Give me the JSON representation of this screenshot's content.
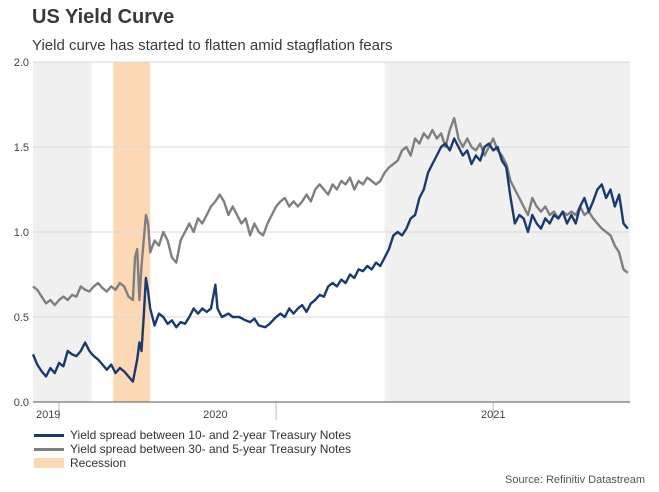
{
  "title": "US Yield Curve",
  "subtitle": "Yield curve has started to flatten amid stagflation fears",
  "source": "Source: Refinitiv Datastream",
  "chart_data": {
    "type": "line",
    "ylim": [
      0.0,
      2.0
    ],
    "yticks": [
      "0.0",
      "0.5",
      "1.0",
      "1.5",
      "2.0"
    ],
    "xlim": [
      2018.88,
      2021.63
    ],
    "x_year_labels": [
      {
        "label": "2019",
        "at": 2019.0
      },
      {
        "label": "2020",
        "at": 2020.0
      },
      {
        "label": "2021",
        "at": 2021.0
      }
    ],
    "year_dividers": [
      2019.0,
      2020.0,
      2021.0
    ],
    "shaded_periods": [
      {
        "from": 2018.88,
        "to": 2019.15,
        "color": "#f0f0f0"
      },
      {
        "from": 2020.5,
        "to": 2021.63,
        "color": "#f0f0f0"
      }
    ],
    "recession": {
      "from": 2019.25,
      "to": 2019.42,
      "color": "#fdd8b5"
    },
    "legend_recession": "Recession",
    "series": [
      {
        "name": "Yield spread between 10- and 2-year Treasury Notes",
        "color": "#1a3a6e",
        "points": [
          [
            2018.88,
            0.28
          ],
          [
            2018.9,
            0.22
          ],
          [
            2018.92,
            0.18
          ],
          [
            2018.94,
            0.15
          ],
          [
            2018.96,
            0.2
          ],
          [
            2018.98,
            0.17
          ],
          [
            2019.0,
            0.23
          ],
          [
            2019.02,
            0.21
          ],
          [
            2019.04,
            0.3
          ],
          [
            2019.06,
            0.28
          ],
          [
            2019.08,
            0.27
          ],
          [
            2019.1,
            0.3
          ],
          [
            2019.12,
            0.35
          ],
          [
            2019.14,
            0.3
          ],
          [
            2019.16,
            0.27
          ],
          [
            2019.18,
            0.25
          ],
          [
            2019.2,
            0.22
          ],
          [
            2019.22,
            0.19
          ],
          [
            2019.24,
            0.22
          ],
          [
            2019.26,
            0.17
          ],
          [
            2019.28,
            0.2
          ],
          [
            2019.3,
            0.18
          ],
          [
            2019.32,
            0.15
          ],
          [
            2019.34,
            0.12
          ],
          [
            2019.36,
            0.25
          ],
          [
            2019.37,
            0.35
          ],
          [
            2019.38,
            0.3
          ],
          [
            2019.39,
            0.5
          ],
          [
            2019.4,
            0.73
          ],
          [
            2019.41,
            0.65
          ],
          [
            2019.42,
            0.55
          ],
          [
            2019.44,
            0.45
          ],
          [
            2019.46,
            0.52
          ],
          [
            2019.48,
            0.5
          ],
          [
            2019.5,
            0.46
          ],
          [
            2019.52,
            0.48
          ],
          [
            2019.54,
            0.44
          ],
          [
            2019.56,
            0.47
          ],
          [
            2019.58,
            0.46
          ],
          [
            2019.6,
            0.5
          ],
          [
            2019.62,
            0.55
          ],
          [
            2019.64,
            0.52
          ],
          [
            2019.66,
            0.55
          ],
          [
            2019.68,
            0.53
          ],
          [
            2019.7,
            0.55
          ],
          [
            2019.71,
            0.62
          ],
          [
            2019.72,
            0.69
          ],
          [
            2019.73,
            0.55
          ],
          [
            2019.75,
            0.5
          ],
          [
            2019.78,
            0.52
          ],
          [
            2019.8,
            0.5
          ],
          [
            2019.83,
            0.5
          ],
          [
            2019.86,
            0.48
          ],
          [
            2019.88,
            0.47
          ],
          [
            2019.9,
            0.49
          ],
          [
            2019.92,
            0.45
          ],
          [
            2019.95,
            0.44
          ],
          [
            2019.97,
            0.46
          ],
          [
            2020.0,
            0.5
          ],
          [
            2020.02,
            0.52
          ],
          [
            2020.04,
            0.5
          ],
          [
            2020.06,
            0.55
          ],
          [
            2020.08,
            0.52
          ],
          [
            2020.1,
            0.55
          ],
          [
            2020.12,
            0.57
          ],
          [
            2020.14,
            0.53
          ],
          [
            2020.16,
            0.58
          ],
          [
            2020.18,
            0.6
          ],
          [
            2020.2,
            0.63
          ],
          [
            2020.22,
            0.62
          ],
          [
            2020.24,
            0.68
          ],
          [
            2020.26,
            0.7
          ],
          [
            2020.28,
            0.68
          ],
          [
            2020.3,
            0.72
          ],
          [
            2020.32,
            0.7
          ],
          [
            2020.34,
            0.75
          ],
          [
            2020.36,
            0.73
          ],
          [
            2020.38,
            0.78
          ],
          [
            2020.4,
            0.77
          ],
          [
            2020.42,
            0.8
          ],
          [
            2020.44,
            0.78
          ],
          [
            2020.46,
            0.82
          ],
          [
            2020.48,
            0.8
          ],
          [
            2020.5,
            0.85
          ],
          [
            2020.52,
            0.9
          ],
          [
            2020.54,
            0.98
          ],
          [
            2020.56,
            1.0
          ],
          [
            2020.58,
            0.98
          ],
          [
            2020.6,
            1.02
          ],
          [
            2020.62,
            1.08
          ],
          [
            2020.64,
            1.1
          ],
          [
            2020.66,
            1.2
          ],
          [
            2020.68,
            1.25
          ],
          [
            2020.7,
            1.35
          ],
          [
            2020.72,
            1.4
          ],
          [
            2020.74,
            1.45
          ],
          [
            2020.76,
            1.5
          ],
          [
            2020.78,
            1.52
          ],
          [
            2020.8,
            1.48
          ],
          [
            2020.82,
            1.55
          ],
          [
            2020.84,
            1.5
          ],
          [
            2020.86,
            1.45
          ],
          [
            2020.88,
            1.48
          ],
          [
            2020.9,
            1.4
          ],
          [
            2020.92,
            1.45
          ],
          [
            2020.94,
            1.42
          ],
          [
            2020.96,
            1.5
          ],
          [
            2020.98,
            1.52
          ],
          [
            2021.0,
            1.48
          ],
          [
            2021.02,
            1.5
          ],
          [
            2021.04,
            1.42
          ],
          [
            2021.06,
            1.38
          ],
          [
            2021.08,
            1.2
          ],
          [
            2021.1,
            1.05
          ],
          [
            2021.12,
            1.1
          ],
          [
            2021.14,
            1.08
          ],
          [
            2021.16,
            1.0
          ],
          [
            2021.18,
            1.1
          ],
          [
            2021.2,
            1.05
          ],
          [
            2021.22,
            1.02
          ],
          [
            2021.24,
            1.08
          ],
          [
            2021.26,
            1.05
          ],
          [
            2021.28,
            1.1
          ],
          [
            2021.3,
            1.08
          ],
          [
            2021.32,
            1.12
          ],
          [
            2021.34,
            1.05
          ],
          [
            2021.36,
            1.1
          ],
          [
            2021.38,
            1.05
          ],
          [
            2021.4,
            1.15
          ],
          [
            2021.42,
            1.2
          ],
          [
            2021.44,
            1.12
          ],
          [
            2021.46,
            1.18
          ],
          [
            2021.48,
            1.25
          ],
          [
            2021.5,
            1.28
          ],
          [
            2021.52,
            1.2
          ],
          [
            2021.54,
            1.25
          ],
          [
            2021.56,
            1.15
          ],
          [
            2021.58,
            1.22
          ],
          [
            2021.6,
            1.05
          ],
          [
            2021.62,
            1.02
          ]
        ]
      },
      {
        "name": "Yield spread between 30- and 5-year Treasury Notes",
        "color": "#7f7f7f",
        "points": [
          [
            2018.88,
            0.68
          ],
          [
            2018.9,
            0.66
          ],
          [
            2018.92,
            0.62
          ],
          [
            2018.94,
            0.58
          ],
          [
            2018.96,
            0.6
          ],
          [
            2018.98,
            0.57
          ],
          [
            2019.0,
            0.6
          ],
          [
            2019.02,
            0.62
          ],
          [
            2019.04,
            0.6
          ],
          [
            2019.06,
            0.63
          ],
          [
            2019.08,
            0.62
          ],
          [
            2019.1,
            0.68
          ],
          [
            2019.12,
            0.66
          ],
          [
            2019.14,
            0.65
          ],
          [
            2019.16,
            0.68
          ],
          [
            2019.18,
            0.7
          ],
          [
            2019.2,
            0.67
          ],
          [
            2019.22,
            0.65
          ],
          [
            2019.24,
            0.68
          ],
          [
            2019.26,
            0.66
          ],
          [
            2019.28,
            0.7
          ],
          [
            2019.3,
            0.68
          ],
          [
            2019.32,
            0.62
          ],
          [
            2019.34,
            0.6
          ],
          [
            2019.35,
            0.85
          ],
          [
            2019.36,
            0.9
          ],
          [
            2019.37,
            0.6
          ],
          [
            2019.38,
            0.8
          ],
          [
            2019.39,
            0.95
          ],
          [
            2019.4,
            1.1
          ],
          [
            2019.41,
            1.05
          ],
          [
            2019.42,
            0.88
          ],
          [
            2019.44,
            0.95
          ],
          [
            2019.46,
            0.92
          ],
          [
            2019.48,
            1.0
          ],
          [
            2019.5,
            0.95
          ],
          [
            2019.52,
            0.85
          ],
          [
            2019.54,
            0.82
          ],
          [
            2019.56,
            0.95
          ],
          [
            2019.58,
            1.0
          ],
          [
            2019.6,
            1.05
          ],
          [
            2019.62,
            1.0
          ],
          [
            2019.64,
            1.08
          ],
          [
            2019.66,
            1.05
          ],
          [
            2019.68,
            1.1
          ],
          [
            2019.7,
            1.15
          ],
          [
            2019.72,
            1.18
          ],
          [
            2019.74,
            1.22
          ],
          [
            2019.76,
            1.18
          ],
          [
            2019.78,
            1.1
          ],
          [
            2019.8,
            1.15
          ],
          [
            2019.82,
            1.1
          ],
          [
            2019.84,
            1.05
          ],
          [
            2019.86,
            1.08
          ],
          [
            2019.88,
            0.98
          ],
          [
            2019.9,
            1.05
          ],
          [
            2019.92,
            1.0
          ],
          [
            2019.94,
            0.98
          ],
          [
            2019.96,
            1.05
          ],
          [
            2019.98,
            1.1
          ],
          [
            2020.0,
            1.15
          ],
          [
            2020.02,
            1.18
          ],
          [
            2020.04,
            1.2
          ],
          [
            2020.06,
            1.15
          ],
          [
            2020.08,
            1.18
          ],
          [
            2020.1,
            1.15
          ],
          [
            2020.12,
            1.18
          ],
          [
            2020.14,
            1.22
          ],
          [
            2020.16,
            1.18
          ],
          [
            2020.18,
            1.25
          ],
          [
            2020.2,
            1.28
          ],
          [
            2020.22,
            1.25
          ],
          [
            2020.24,
            1.22
          ],
          [
            2020.26,
            1.28
          ],
          [
            2020.28,
            1.25
          ],
          [
            2020.3,
            1.3
          ],
          [
            2020.32,
            1.28
          ],
          [
            2020.34,
            1.32
          ],
          [
            2020.36,
            1.25
          ],
          [
            2020.38,
            1.3
          ],
          [
            2020.4,
            1.28
          ],
          [
            2020.42,
            1.32
          ],
          [
            2020.44,
            1.3
          ],
          [
            2020.46,
            1.28
          ],
          [
            2020.48,
            1.3
          ],
          [
            2020.5,
            1.35
          ],
          [
            2020.52,
            1.38
          ],
          [
            2020.54,
            1.4
          ],
          [
            2020.56,
            1.42
          ],
          [
            2020.58,
            1.48
          ],
          [
            2020.6,
            1.5
          ],
          [
            2020.62,
            1.45
          ],
          [
            2020.64,
            1.55
          ],
          [
            2020.66,
            1.52
          ],
          [
            2020.68,
            1.58
          ],
          [
            2020.7,
            1.55
          ],
          [
            2020.72,
            1.6
          ],
          [
            2020.74,
            1.55
          ],
          [
            2020.76,
            1.58
          ],
          [
            2020.78,
            1.5
          ],
          [
            2020.8,
            1.6
          ],
          [
            2020.82,
            1.67
          ],
          [
            2020.84,
            1.55
          ],
          [
            2020.86,
            1.5
          ],
          [
            2020.88,
            1.55
          ],
          [
            2020.9,
            1.5
          ],
          [
            2020.92,
            1.48
          ],
          [
            2020.94,
            1.52
          ],
          [
            2020.96,
            1.45
          ],
          [
            2020.98,
            1.5
          ],
          [
            2021.0,
            1.55
          ],
          [
            2021.02,
            1.48
          ],
          [
            2021.04,
            1.45
          ],
          [
            2021.06,
            1.4
          ],
          [
            2021.08,
            1.3
          ],
          [
            2021.1,
            1.25
          ],
          [
            2021.12,
            1.2
          ],
          [
            2021.14,
            1.15
          ],
          [
            2021.16,
            1.1
          ],
          [
            2021.18,
            1.2
          ],
          [
            2021.2,
            1.15
          ],
          [
            2021.22,
            1.12
          ],
          [
            2021.24,
            1.15
          ],
          [
            2021.26,
            1.1
          ],
          [
            2021.28,
            1.12
          ],
          [
            2021.3,
            1.08
          ],
          [
            2021.32,
            1.12
          ],
          [
            2021.34,
            1.1
          ],
          [
            2021.36,
            1.12
          ],
          [
            2021.38,
            1.1
          ],
          [
            2021.4,
            1.15
          ],
          [
            2021.42,
            1.1
          ],
          [
            2021.44,
            1.12
          ],
          [
            2021.46,
            1.08
          ],
          [
            2021.48,
            1.05
          ],
          [
            2021.5,
            1.02
          ],
          [
            2021.52,
            1.0
          ],
          [
            2021.54,
            0.98
          ],
          [
            2021.56,
            0.92
          ],
          [
            2021.58,
            0.88
          ],
          [
            2021.6,
            0.78
          ],
          [
            2021.62,
            0.76
          ]
        ]
      }
    ]
  }
}
